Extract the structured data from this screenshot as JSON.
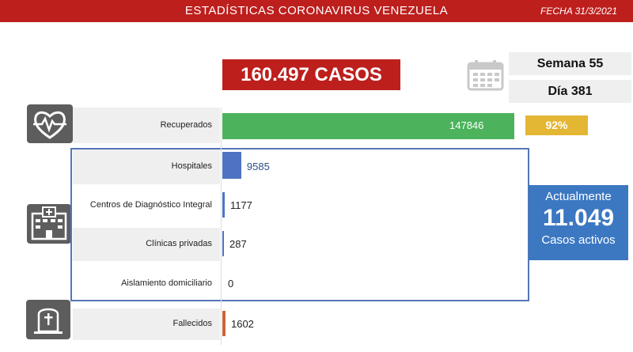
{
  "header": {
    "title": "ESTADÍSTICAS CORONAVIRUS VENEZUELA",
    "date": "FECHA 31/3/2021"
  },
  "total_cases": "160.497 CASOS",
  "week_label": "Semana 55",
  "day_label": "Día 381",
  "recovered_pct": "92%",
  "active": {
    "top": "Actualmente",
    "number": "11.049",
    "bottom": "Casos activos"
  },
  "icons": {
    "header": "none",
    "calendar": "calendar-icon",
    "recovered": "heartbeat-icon",
    "hospital": "hospital-icon",
    "deceased": "tombstone-icon"
  },
  "colors": {
    "header_red": "#bd1f1d",
    "recovered_green": "#4cb35c",
    "hospital_blue": "#4f73c2",
    "deceased_orange": "#c8663a",
    "percent_gold": "#e3b634",
    "active_blue": "#3c78c2"
  },
  "chart_data": {
    "type": "bar",
    "orientation": "horizontal",
    "categories": [
      "Recuperados",
      "Hospitales",
      "Centros de Diagnóstico Integral",
      "Clínicas privadas",
      "Aislamiento domiciliario",
      "Fallecidos"
    ],
    "values": [
      147846,
      9585,
      1177,
      287,
      0,
      1602
    ],
    "value_labels": [
      "147846",
      "9585",
      "1177",
      "287",
      "0",
      "1602"
    ]
  }
}
